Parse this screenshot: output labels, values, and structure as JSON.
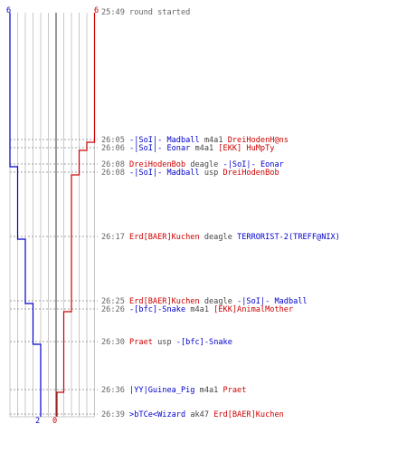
{
  "colors": {
    "team_ct": "#0000cc",
    "team_t": "#cc0000",
    "time": "#666666",
    "neutral": "#444444",
    "grid": "#c8c8c8",
    "center_line": "#555555",
    "dashed": "#a0a0a0"
  },
  "scores": {
    "ct_start": "6",
    "t_start": "6",
    "ct_end": "2",
    "t_end": "0"
  },
  "events": [
    {
      "time": "25:49",
      "parts": [
        {
          "t": "round started",
          "c": "time"
        }
      ]
    },
    {
      "time": "26:05",
      "parts": [
        {
          "t": "-|SoI|- Madball",
          "c": "team_ct"
        },
        {
          "t": " m4a1 ",
          "c": "neutral"
        },
        {
          "t": "DreiHodenH@ns",
          "c": "team_t"
        }
      ]
    },
    {
      "time": "26:06",
      "parts": [
        {
          "t": "-|SoI|- Eonar",
          "c": "team_ct"
        },
        {
          "t": " m4a1 ",
          "c": "neutral"
        },
        {
          "t": "[EKK] HuMpTy",
          "c": "team_t"
        }
      ]
    },
    {
      "time": "26:08",
      "parts": [
        {
          "t": "DreiHodenBob",
          "c": "team_t"
        },
        {
          "t": " deagle ",
          "c": "neutral"
        },
        {
          "t": "-|SoI|- Eonar",
          "c": "team_ct"
        }
      ]
    },
    {
      "time": "26:08",
      "parts": [
        {
          "t": "-|SoI|- Madball",
          "c": "team_ct"
        },
        {
          "t": " usp ",
          "c": "neutral"
        },
        {
          "t": "DreiHodenBob",
          "c": "team_t"
        }
      ]
    },
    {
      "time": "26:17",
      "parts": [
        {
          "t": "Erd[BAER]Kuchen",
          "c": "team_t"
        },
        {
          "t": " deagle ",
          "c": "neutral"
        },
        {
          "t": "TERRORIST-2(TREFF@NIX)",
          "c": "team_ct"
        }
      ]
    },
    {
      "time": "26:25",
      "parts": [
        {
          "t": "Erd[BAER]Kuchen",
          "c": "team_t"
        },
        {
          "t": " deagle ",
          "c": "neutral"
        },
        {
          "t": "-|SoI|- Madball",
          "c": "team_ct"
        }
      ]
    },
    {
      "time": "26:26",
      "parts": [
        {
          "t": "-[bfc]-Snake",
          "c": "team_ct"
        },
        {
          "t": " m4a1 ",
          "c": "neutral"
        },
        {
          "t": "[EKK]AnimalMother",
          "c": "team_t"
        }
      ]
    },
    {
      "time": "26:30",
      "parts": [
        {
          "t": "Praet",
          "c": "team_t"
        },
        {
          "t": " usp ",
          "c": "neutral"
        },
        {
          "t": "-[bfc]-Snake",
          "c": "team_ct"
        }
      ]
    },
    {
      "time": "26:36",
      "parts": [
        {
          "t": "|YY|Guinea_Pig",
          "c": "team_ct"
        },
        {
          "t": " m4a1 ",
          "c": "neutral"
        },
        {
          "t": "Praet",
          "c": "team_t"
        }
      ]
    },
    {
      "time": "26:39",
      "parts": [
        {
          "t": ">bTCe<Wizard",
          "c": "team_ct"
        },
        {
          "t": " ak47 ",
          "c": "neutral"
        },
        {
          "t": "Erd[BAER]Kuchen",
          "c": "team_t"
        }
      ]
    }
  ]
}
